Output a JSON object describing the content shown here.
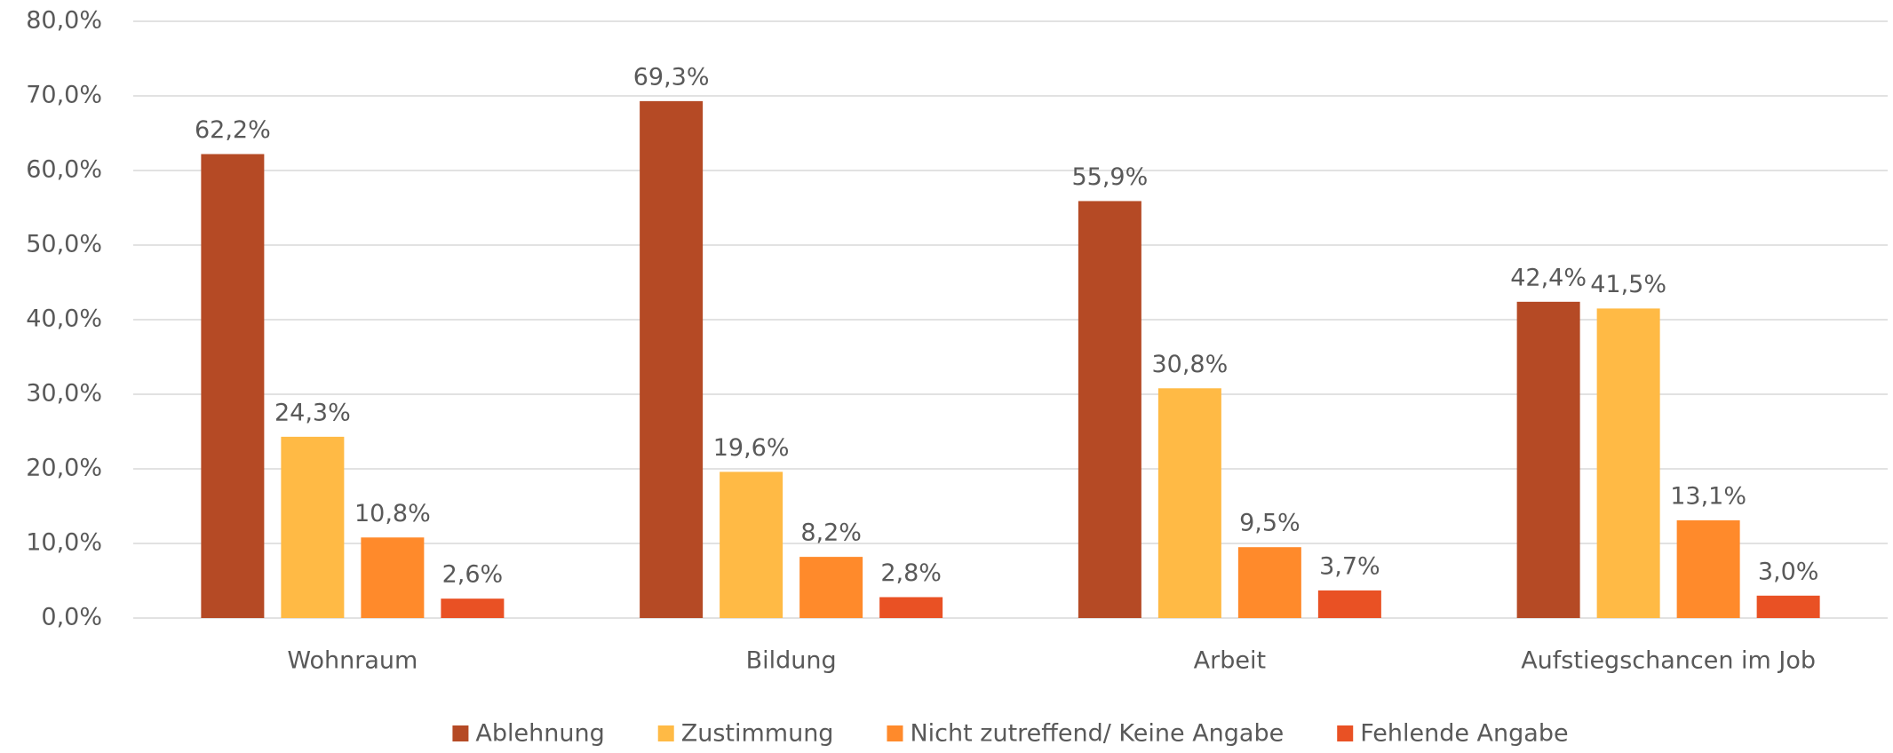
{
  "chart_data": {
    "type": "bar",
    "categories": [
      "Wohnraum",
      "Bildung",
      "Arbeit",
      "Aufstiegschancen im Job"
    ],
    "series": [
      {
        "name": "Ablehnung",
        "color": "#b54a25",
        "values": [
          62.2,
          69.3,
          55.9,
          42.4
        ],
        "value_labels": [
          "62,2%",
          "69,3%",
          "55,9%",
          "42,4%"
        ]
      },
      {
        "name": "Zustimmung",
        "color": "#ffba45",
        "values": [
          24.3,
          19.6,
          30.8,
          41.5
        ],
        "value_labels": [
          "24,3%",
          "19,6%",
          "30,8%",
          "41,5%"
        ]
      },
      {
        "name": "Nicht zutreffend/ Keine Angabe",
        "color": "#ff8a2b",
        "values": [
          10.8,
          8.2,
          9.5,
          13.1
        ],
        "value_labels": [
          "10,8%",
          "8,2%",
          "9,5%",
          "13,1%"
        ]
      },
      {
        "name": "Fehlende Angabe",
        "color": "#e95124",
        "values": [
          2.6,
          2.8,
          3.7,
          3.0
        ],
        "value_labels": [
          "2,6%",
          "2,8%",
          "3,7%",
          "3,0%"
        ]
      }
    ],
    "ylim": [
      0,
      80
    ],
    "yticks": [
      {
        "value": 0,
        "label": "0,0%"
      },
      {
        "value": 10,
        "label": "10,0%"
      },
      {
        "value": 20,
        "label": "20,0%"
      },
      {
        "value": 30,
        "label": "30,0%"
      },
      {
        "value": 40,
        "label": "40,0%"
      },
      {
        "value": 50,
        "label": "50,0%"
      },
      {
        "value": 60,
        "label": "60,0%"
      },
      {
        "value": 70,
        "label": "70,0%"
      },
      {
        "value": 80,
        "label": "80,0%"
      }
    ],
    "grid": true,
    "legend": "bottom"
  }
}
